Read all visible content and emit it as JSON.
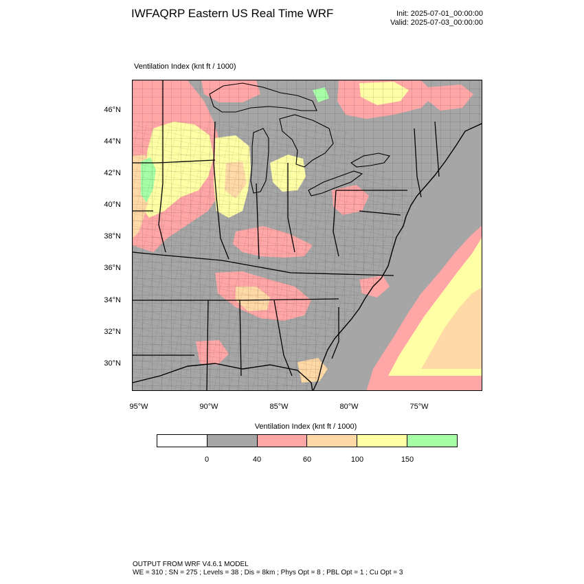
{
  "header": {
    "title": "IWFAQRP Eastern US Real Time WRF",
    "init_line": "Init: 2025-07-01_00:00:00",
    "valid_line": "Valid: 2025-07-03_00:00:00"
  },
  "map": {
    "field_label": "Ventilation Index   (knt ft / 1000)",
    "lat_labels": [
      "46°N",
      "44°N",
      "42°N",
      "40°N",
      "38°N",
      "36°N",
      "34°N",
      "32°N",
      "30°N"
    ],
    "lon_labels": [
      "95°W",
      "90°W",
      "85°W",
      "80°W",
      "75°W"
    ],
    "colors": {
      "land_default": "#a6a6a6",
      "ocean": "#a6a6a6",
      "class_0_40": "#a6a6a6",
      "class_40_60": "#ffa6a6",
      "class_60_100": "#ffd9a6",
      "class_100_150": "#ffffa6",
      "class_150_plus": "#a6ffa6",
      "great_lakes": "#a6a6a6"
    }
  },
  "legend": {
    "title": "Ventilation Index  (knt ft / 1000)",
    "colors": [
      "#ffffff",
      "#a6a6a6",
      "#ffa6a6",
      "#ffd9a6",
      "#ffffa6",
      "#a6ffa6"
    ],
    "ticks": [
      "0",
      "40",
      "60",
      "100",
      "150"
    ]
  },
  "footer": {
    "line1": "OUTPUT FROM WRF V4.6.1 MODEL",
    "line2": "WE = 310 ; SN = 275 ; Levels = 38 ; Dis = 8km ; Phys Opt = 8 ; PBL Opt = 1 ; Cu Opt = 3"
  }
}
